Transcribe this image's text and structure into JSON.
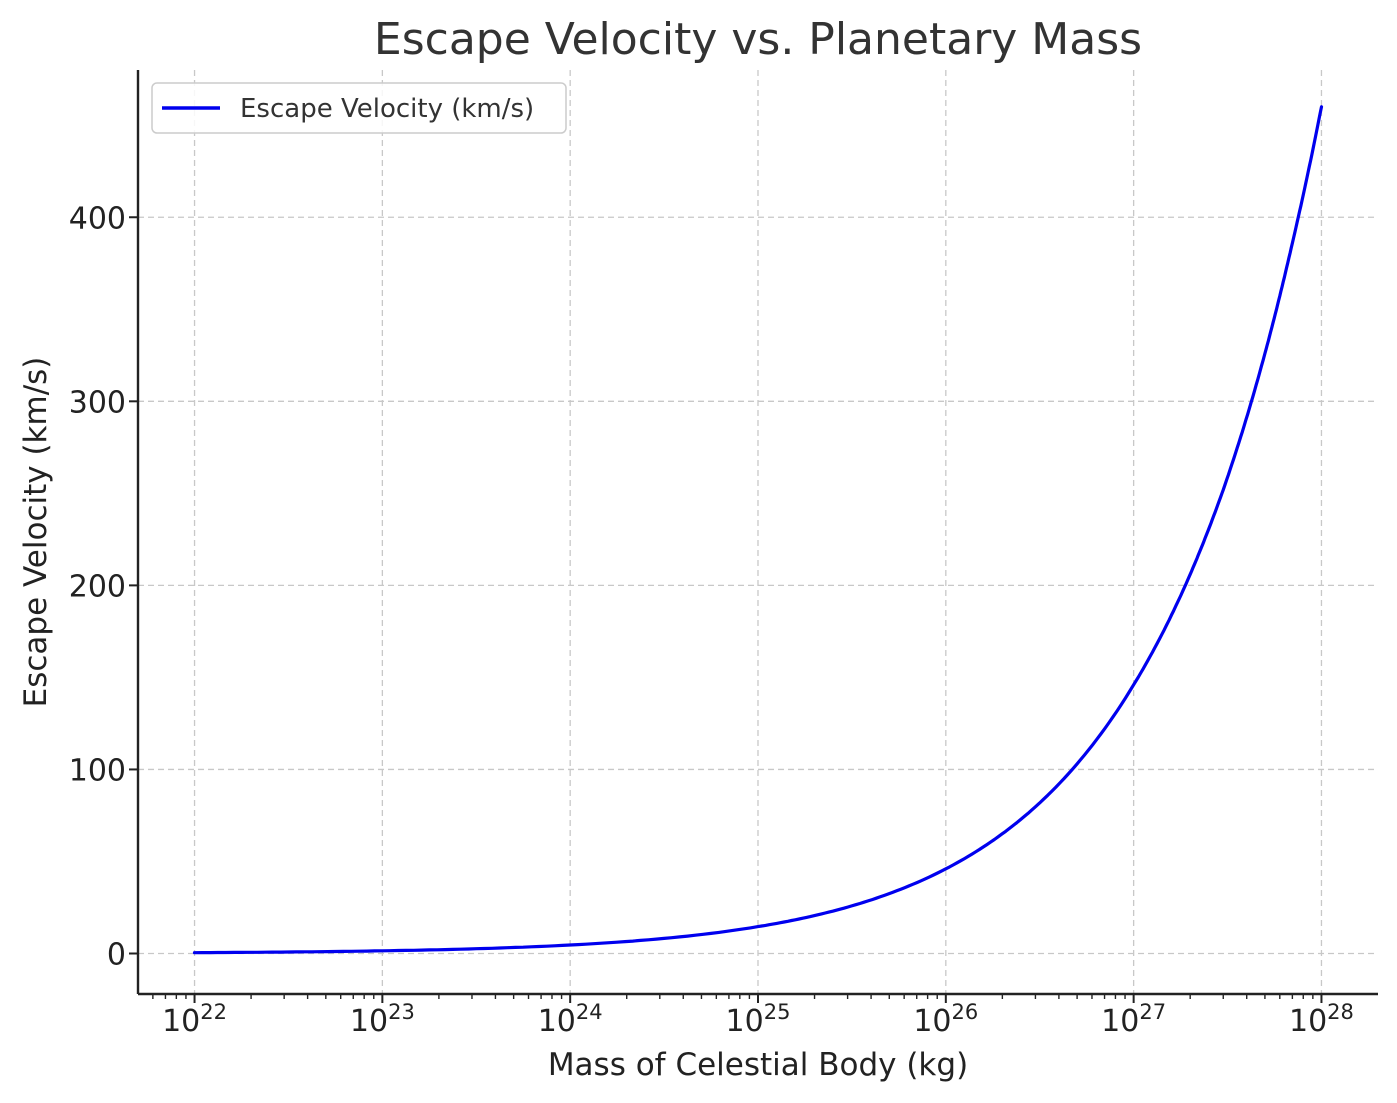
{
  "chart_data": {
    "type": "line",
    "title": "Escape Velocity vs. Planetary Mass",
    "xlabel": "Mass of Celestial Body (kg)",
    "ylabel": "Escape Velocity (km/s)",
    "xscale": "log",
    "xlim": [
      5e+21,
      2e+28
    ],
    "ylim": [
      -22,
      480
    ],
    "xticks": [
      {
        "base": "10",
        "exp": "22",
        "value": 1e+22
      },
      {
        "base": "10",
        "exp": "23",
        "value": 1e+23
      },
      {
        "base": "10",
        "exp": "24",
        "value": 1e+24
      },
      {
        "base": "10",
        "exp": "25",
        "value": 1e+25
      },
      {
        "base": "10",
        "exp": "26",
        "value": 1e+26
      },
      {
        "base": "10",
        "exp": "27",
        "value": 1e+27
      },
      {
        "base": "10",
        "exp": "28",
        "value": 1e+28
      }
    ],
    "yticks": [
      {
        "label": "0",
        "value": 0
      },
      {
        "label": "100",
        "value": 100
      },
      {
        "label": "200",
        "value": 200
      },
      {
        "label": "300",
        "value": 300
      },
      {
        "label": "400",
        "value": 400
      }
    ],
    "grid": true,
    "legend_position": "top-left",
    "series": [
      {
        "name": "Escape Velocity (km/s)",
        "color": "#0000ee",
        "x": [
          1e+22,
          1e+23,
          1e+24,
          1e+25,
          3e+25,
          1e+26,
          3e+26,
          1e+27,
          2e+27,
          3e+27,
          5e+27,
          7e+27,
          1e+28
        ],
        "y": [
          0.46,
          1.46,
          4.6,
          14.6,
          25.2,
          46,
          79.7,
          146,
          206,
          252,
          326,
          386,
          460
        ]
      }
    ]
  }
}
